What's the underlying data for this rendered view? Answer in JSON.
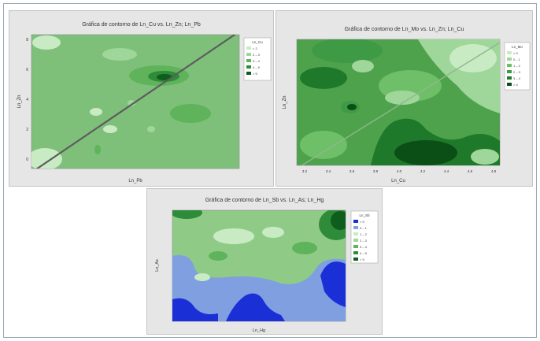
{
  "chart_data": [
    {
      "type": "contour",
      "title": "Gráfica de contorno de Ln_Cu vs. Ln_Zn; Ln_Pb",
      "xlabel": "Ln_Pb",
      "ylabel": "Ln_Zn",
      "ylim": [
        0,
        8
      ],
      "yticks": [
        "0",
        "2",
        "4",
        "6",
        "8"
      ],
      "legend_title": "Ln_Cu",
      "legend": [
        "< 2",
        "2 – 3",
        "3 – 4",
        "4 – 5",
        "> 5"
      ],
      "legend_colors": [
        "#c9ebc4",
        "#9fd699",
        "#5fb35a",
        "#2e8b3a",
        "#0d5e1c"
      ],
      "base_color": "#7ec07a",
      "legend_position": "right"
    },
    {
      "type": "contour",
      "title": "Gráfica de contorno de Ln_Mo vs. Ln_Zn; Ln_Cu",
      "xlabel": "Ln_Cu",
      "ylabel": "Ln_Zn",
      "xticks": [
        "3.2",
        "3.4",
        "3.6",
        "3.8",
        "4.0",
        "4.2",
        "4.4",
        "4.6",
        "4.8"
      ],
      "legend_title": "Ln_Mo",
      "legend": [
        "< 0",
        "0 – 1",
        "1 – 2",
        "2 – 3",
        "3 – 4",
        "> 4"
      ],
      "legend_colors": [
        "#c9ebc4",
        "#9fd699",
        "#6fbf69",
        "#3f9a45",
        "#1e7a2a",
        "#0b4f17"
      ],
      "base_color": "#4ea24c",
      "legend_position": "right"
    },
    {
      "type": "contour",
      "title": "Gráfica de contorno de Ln_Sb vs. Ln_As; Ln_Hg",
      "xlabel": "Ln_Hg",
      "ylabel": "Ln_As",
      "legend_title": "Ln_Sb",
      "legend": [
        "< 0",
        "0 – 1",
        "1 – 2",
        "2 – 3",
        "3 – 4",
        "4 – 5",
        "> 5"
      ],
      "legend_colors": [
        "#1a2fd6",
        "#7f9fe0",
        "#c9ebc4",
        "#9fd699",
        "#5fb35a",
        "#2e8b3a",
        "#0d5e1c"
      ],
      "base_color": "#8fcb87",
      "legend_position": "right"
    }
  ]
}
